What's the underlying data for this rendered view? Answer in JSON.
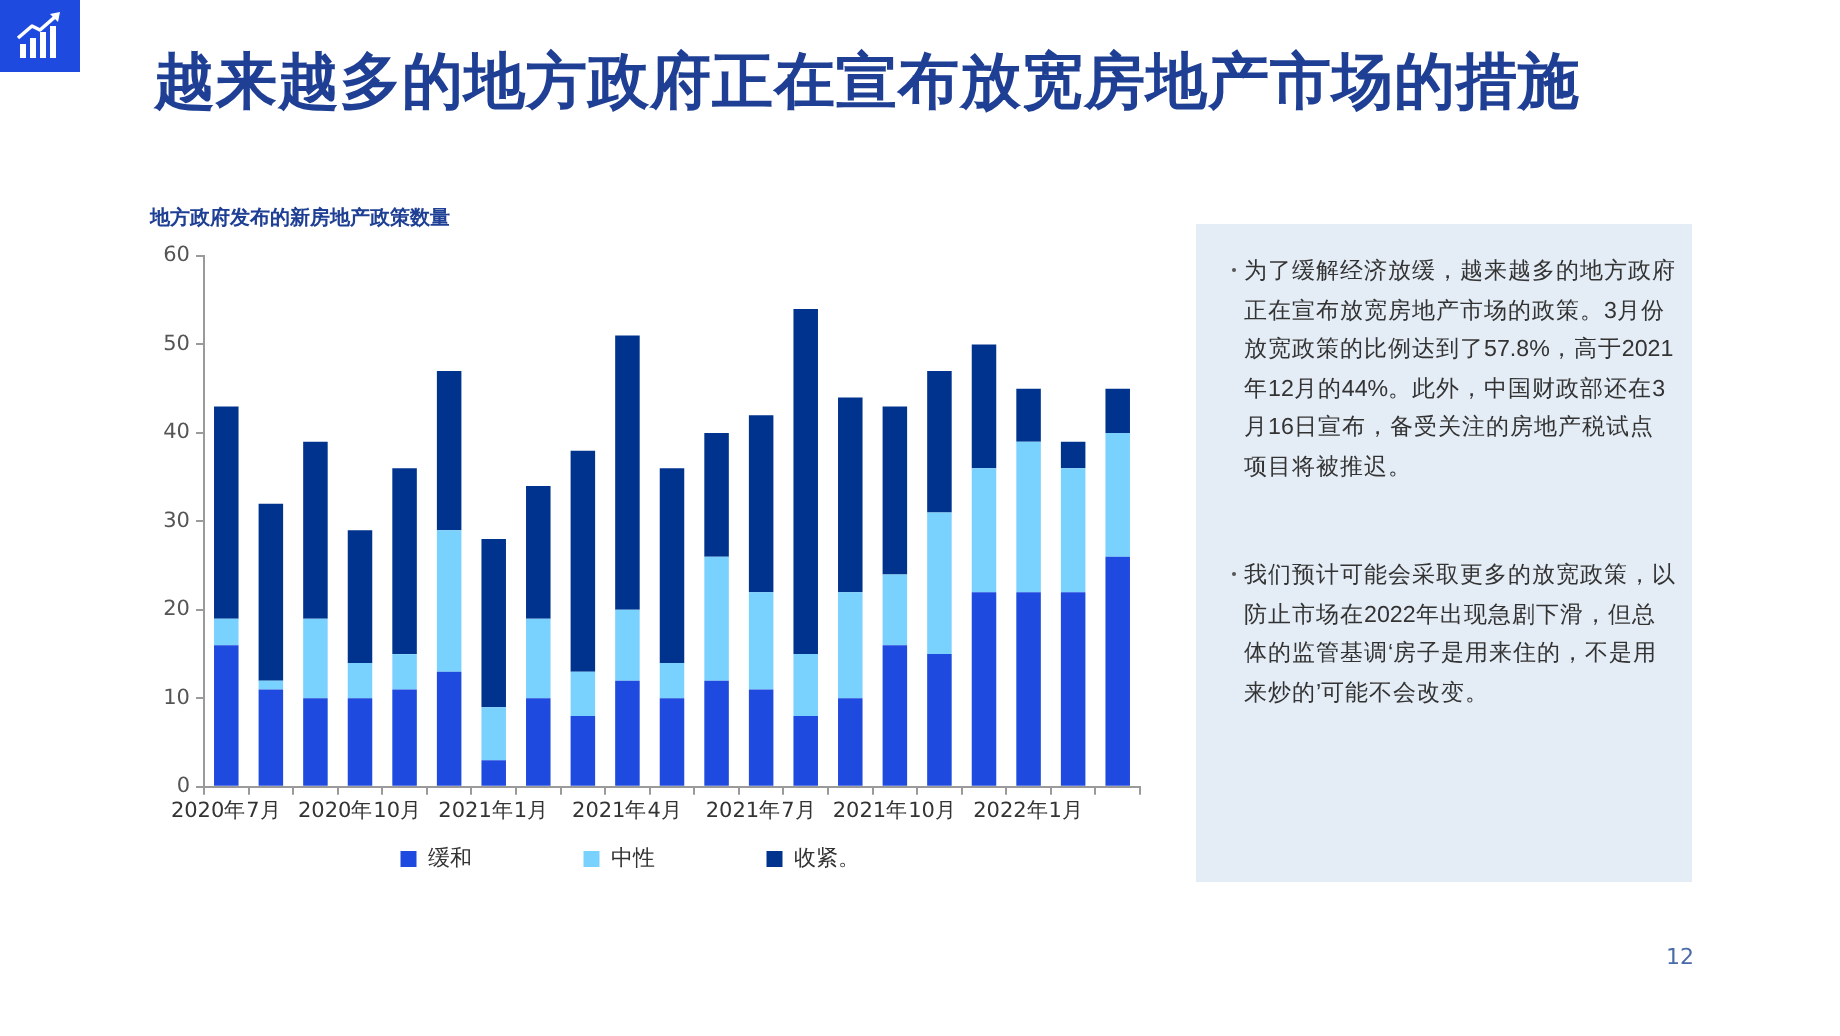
{
  "chart_data": {
    "type": "bar",
    "title": "越来越多的地方政府正在宣布放宽房地产市场的措施",
    "subtitle": "地方政府发布的新房地产政策数量",
    "categories": [
      "2020年7月",
      null,
      null,
      "2020年10月",
      null,
      null,
      "2021年1月",
      null,
      null,
      "2021年4月",
      null,
      null,
      "2021年7月",
      null,
      null,
      "2021年10月",
      null,
      null,
      "2022年1月",
      null,
      null
    ],
    "stacked": true,
    "series": [
      {
        "name": "缓和",
        "color": "#1f4ae0",
        "values": [
          16,
          11,
          10,
          10,
          11,
          13,
          3,
          10,
          8,
          12,
          10,
          12,
          11,
          8,
          10,
          16,
          15,
          22,
          22,
          22,
          26
        ]
      },
      {
        "name": "中性",
        "color": "#79d2fd",
        "values": [
          3,
          1,
          9,
          4,
          4,
          16,
          6,
          9,
          5,
          8,
          4,
          14,
          11,
          7,
          12,
          8,
          16,
          14,
          17,
          14,
          14
        ]
      },
      {
        "name": "收紧。",
        "color": "#00338d",
        "values": [
          24,
          20,
          20,
          15,
          21,
          18,
          19,
          15,
          25,
          31,
          22,
          14,
          20,
          39,
          22,
          19,
          16,
          14,
          6,
          3,
          5
        ]
      }
    ],
    "ylim": [
      0,
      60
    ],
    "yticks": [
      0,
      10,
      20,
      30,
      40,
      50,
      60
    ],
    "grid": false,
    "legend": "bottom",
    "annotations": [
      "为了缓解经济放缓，越来越多的地方政府正在宣布放宽房地产市场的政策。3月份放宽政策的比例达到了57.8%，高于2021年12月的44%。此外，中国财政部还在3月16日宣布，备受关注的房地产税试点项目将被推迟。",
      "我们预计可能会采取更多的放宽政策，以防止市场在2022年出现急剧下滑，但总体的监管基调‘房子是用来住的，不是用来炒的’可能不会改变。",
      "12"
    ]
  }
}
